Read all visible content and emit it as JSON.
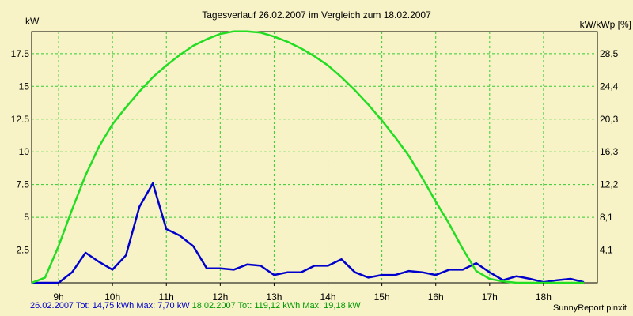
{
  "chart_data": {
    "type": "line",
    "title": "Tagesverlauf 26.02.2007 im Vergleich zum 18.02.2007",
    "ylabel_left": "kW",
    "ylabel_right": "kW/kWp [%]",
    "x_range": [
      8.5,
      19.0
    ],
    "ylim": [
      0,
      19.18
    ],
    "x_ticks": [
      9,
      10,
      11,
      12,
      13,
      14,
      15,
      16,
      17,
      18
    ],
    "x_tick_labels": [
      "9h",
      "10h",
      "11h",
      "12h",
      "13h",
      "14h",
      "15h",
      "16h",
      "17h",
      "18h"
    ],
    "y_ticks_left": [
      2.5,
      5,
      7.5,
      10,
      12.5,
      15,
      17.5
    ],
    "y_tick_labels_left": [
      "2.5",
      "5",
      "7.5",
      "10",
      "12.5",
      "15",
      "17.5"
    ],
    "y_tick_labels_right": [
      "4,1",
      "8,1",
      "12,2",
      "16,3",
      "20,3",
      "24,4",
      "28,5"
    ],
    "grid": true,
    "series": [
      {
        "name": "26.02.2007",
        "color": "#0000cc",
        "x": [
          8.5,
          8.75,
          9.0,
          9.25,
          9.5,
          9.75,
          10.0,
          10.25,
          10.5,
          10.75,
          11.0,
          11.25,
          11.5,
          11.75,
          12.0,
          12.25,
          12.5,
          12.75,
          13.0,
          13.25,
          13.5,
          13.75,
          14.0,
          14.25,
          14.5,
          14.75,
          15.0,
          15.25,
          15.5,
          15.75,
          16.0,
          16.25,
          16.5,
          16.75,
          17.0,
          17.25,
          17.5,
          17.75,
          18.0,
          18.25,
          18.5,
          18.75
        ],
        "y": [
          0,
          0,
          0,
          0.8,
          2.3,
          1.6,
          1.0,
          2.1,
          5.8,
          7.6,
          4.1,
          3.6,
          2.8,
          1.1,
          1.1,
          1.0,
          1.4,
          1.3,
          0.6,
          0.8,
          0.8,
          1.3,
          1.3,
          1.8,
          0.8,
          0.4,
          0.6,
          0.6,
          0.9,
          0.8,
          0.6,
          1.0,
          1.0,
          1.5,
          0.8,
          0.2,
          0.5,
          0.3,
          0.05,
          0.2,
          0.3,
          0.05
        ]
      },
      {
        "name": "18.02.2007",
        "color": "#22dd22",
        "x": [
          8.5,
          8.75,
          9.0,
          9.25,
          9.5,
          9.75,
          10.0,
          10.25,
          10.5,
          10.75,
          11.0,
          11.25,
          11.5,
          11.75,
          12.0,
          12.25,
          12.5,
          12.75,
          13.0,
          13.25,
          13.5,
          13.75,
          14.0,
          14.25,
          14.5,
          14.75,
          15.0,
          15.25,
          15.5,
          15.75,
          16.0,
          16.25,
          16.5,
          16.75,
          17.0,
          17.25,
          17.5,
          17.75,
          18.0,
          18.25,
          18.5,
          18.75
        ],
        "y": [
          0,
          0.4,
          2.8,
          5.6,
          8.2,
          10.4,
          12.1,
          13.4,
          14.6,
          15.7,
          16.6,
          17.4,
          18.1,
          18.6,
          19.0,
          19.2,
          19.2,
          19.1,
          18.8,
          18.4,
          17.9,
          17.3,
          16.6,
          15.7,
          14.7,
          13.6,
          12.4,
          11.1,
          9.7,
          8.0,
          6.2,
          4.5,
          2.6,
          0.9,
          0.3,
          0.1,
          0,
          0,
          0,
          0,
          0,
          0
        ]
      }
    ],
    "legend": [
      {
        "text": "26.02.2007 Tot: 14,75 kWh Max: 7,70 kW ",
        "color": "#0000cc"
      },
      {
        "text": "18.02.2007 Tot: 119,12 kWh Max: 19,18 kW",
        "color": "#009900"
      }
    ]
  },
  "credit": "SunnyReport pinxit"
}
